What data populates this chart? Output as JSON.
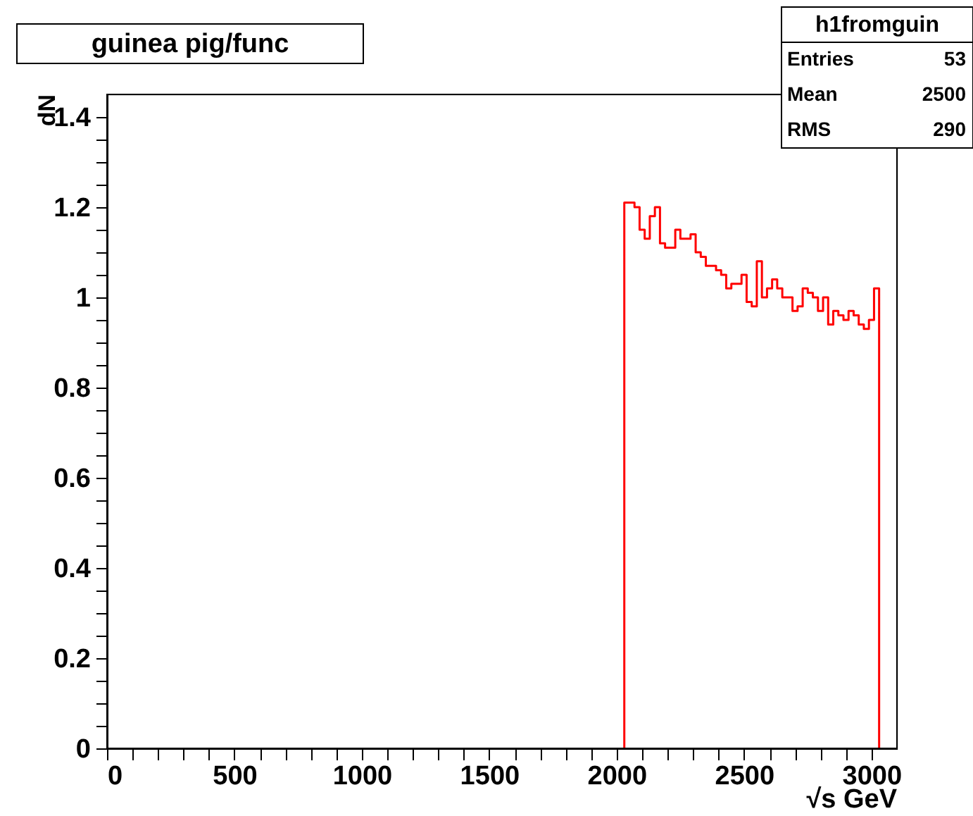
{
  "chart_data": {
    "type": "histogram",
    "title": "guinea pig/func",
    "xlabel": "√s GeV",
    "ylabel": "dN",
    "bins": [
      2030,
      2050,
      2070,
      2090,
      2110,
      2130,
      2150,
      2170,
      2190,
      2210,
      2230,
      2250,
      2270,
      2290,
      2310,
      2330,
      2350,
      2370,
      2390,
      2410,
      2430,
      2450,
      2470,
      2490,
      2510,
      2530,
      2550,
      2570,
      2590,
      2610,
      2630,
      2650,
      2670,
      2690,
      2710,
      2730,
      2750,
      2770,
      2790,
      2810,
      2830,
      2850,
      2870,
      2890,
      2910,
      2930,
      2950,
      2970,
      2990,
      3010,
      3030
    ],
    "values": [
      1.21,
      1.21,
      1.2,
      1.15,
      1.13,
      1.18,
      1.2,
      1.12,
      1.11,
      1.11,
      1.15,
      1.13,
      1.13,
      1.14,
      1.1,
      1.09,
      1.07,
      1.07,
      1.06,
      1.05,
      1.02,
      1.03,
      1.03,
      1.05,
      0.99,
      0.98,
      1.08,
      1.0,
      1.02,
      1.04,
      1.02,
      1.0,
      1.0,
      0.97,
      0.98,
      1.02,
      1.01,
      1.0,
      0.97,
      1.0,
      0.94,
      0.97,
      0.96,
      0.95,
      0.97,
      0.96,
      0.94,
      0.93,
      0.95,
      1.02
    ],
    "color": "#ff0000",
    "xlim": [
      0,
      3100
    ],
    "ylim": [
      0,
      1.45
    ],
    "xticks": [
      0,
      {
        "value": 100,
        "label": null
      },
      {
        "value": 200,
        "label": null
      },
      {
        "value": 300,
        "label": null
      },
      {
        "value": 400,
        "label": null
      },
      500,
      {
        "value": 600,
        "label": null
      },
      {
        "value": 700,
        "label": null
      },
      {
        "value": 800,
        "label": null
      },
      {
        "value": 900,
        "label": null
      },
      1000,
      {
        "value": 1100,
        "label": null
      },
      {
        "value": 1200,
        "label": null
      },
      {
        "value": 1300,
        "label": null
      },
      {
        "value": 1400,
        "label": null
      },
      1500,
      {
        "value": 1600,
        "label": null
      },
      {
        "value": 1700,
        "label": null
      },
      {
        "value": 1800,
        "label": null
      },
      {
        "value": 1900,
        "label": null
      },
      2000,
      {
        "value": 2100,
        "label": null
      },
      {
        "value": 2200,
        "label": null
      },
      {
        "value": 2300,
        "label": null
      },
      {
        "value": 2400,
        "label": null
      },
      2500,
      {
        "value": 2600,
        "label": null
      },
      {
        "value": 2700,
        "label": null
      },
      {
        "value": 2800,
        "label": null
      },
      {
        "value": 2900,
        "label": null
      },
      3000
    ],
    "yticks": [
      0,
      {
        "value": 0.05,
        "label": null
      },
      {
        "value": 0.1,
        "label": null
      },
      {
        "value": 0.15,
        "label": null
      },
      0.2,
      {
        "value": 0.25,
        "label": null
      },
      {
        "value": 0.3,
        "label": null
      },
      {
        "value": 0.35,
        "label": null
      },
      0.4,
      {
        "value": 0.45,
        "label": null
      },
      {
        "value": 0.5,
        "label": null
      },
      {
        "value": 0.55,
        "label": null
      },
      0.6,
      {
        "value": 0.65,
        "label": null
      },
      {
        "value": 0.7,
        "label": null
      },
      {
        "value": 0.75,
        "label": null
      },
      0.8,
      {
        "value": 0.85,
        "label": null
      },
      {
        "value": 0.9,
        "label": null
      },
      {
        "value": 0.95,
        "label": null
      },
      1,
      {
        "value": 1.05,
        "label": null
      },
      {
        "value": 1.1,
        "label": null
      },
      {
        "value": 1.15,
        "label": null
      },
      1.2,
      {
        "value": 1.25,
        "label": null
      },
      {
        "value": 1.3,
        "label": null
      },
      {
        "value": 1.35,
        "label": null
      },
      1.4
    ],
    "grid": false,
    "annotations": [
      "h1fromguin",
      "Entries 53",
      "Mean 2500",
      "RMS 290"
    ]
  }
}
